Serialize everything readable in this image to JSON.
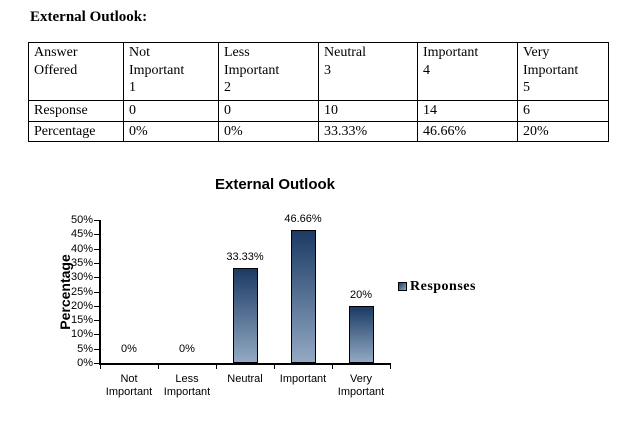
{
  "document": {
    "title": "External Outlook:"
  },
  "table": {
    "header_cells": [
      "Answer\nOffered",
      "Not\nImportant\n1",
      "Less\nImportant\n2",
      "Neutral\n3",
      "Important\n4",
      "Very\nImportant\n5"
    ],
    "rows": [
      {
        "cells": [
          "Response",
          "0",
          "0",
          "10",
          "14",
          "6"
        ]
      },
      {
        "cells": [
          "Percentage",
          "0%",
          "0%",
          "33.33%",
          "46.66%",
          "20%"
        ]
      }
    ]
  },
  "chart_data": {
    "type": "bar",
    "title": "External Outlook",
    "xlabel": "",
    "ylabel": "Percentage",
    "categories": [
      "Not Important",
      "Less Important",
      "Neutral",
      "Important",
      "Very Important"
    ],
    "category_display": [
      "Not\nImportant",
      "Less\nImportant",
      "Neutral",
      "Important",
      "Very\nImportant"
    ],
    "series": [
      {
        "name": "Responses",
        "values": [
          0,
          0,
          33.33,
          46.66,
          20
        ]
      }
    ],
    "data_labels": [
      "0%",
      "0%",
      "33.33%",
      "46.66%",
      "20%"
    ],
    "ylim": [
      0,
      50
    ],
    "ytick_step": 5,
    "ytick_labels": [
      "0%",
      "5%",
      "10%",
      "15%",
      "20%",
      "25%",
      "30%",
      "35%",
      "40%",
      "45%",
      "50%"
    ],
    "grid": false,
    "legend": {
      "label": "Responses",
      "position": "right"
    },
    "colors": {
      "bar_top": "#1b3a64",
      "bar_bottom": "#93a9c3",
      "bar_border": "#000000"
    }
  }
}
